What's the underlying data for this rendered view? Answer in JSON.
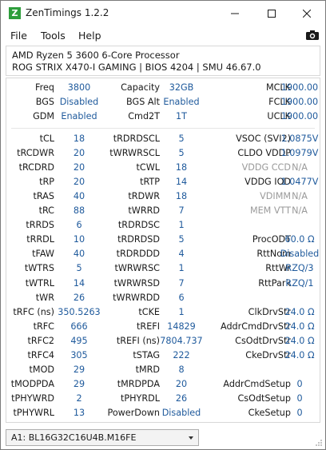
{
  "window": {
    "title": "ZenTimings 1.2.2",
    "icon_letter": "Z"
  },
  "menu": {
    "file": "File",
    "tools": "Tools",
    "help": "Help"
  },
  "system": {
    "cpu": "AMD Ryzen 5 3600 6-Core Processor",
    "board": "ROG STRIX X470-I GAMING | BIOS 4204 | SMU 46.67.0"
  },
  "top": [
    {
      "l1": "Freq",
      "v1": "3800",
      "l2": "Capacity",
      "v2": "32GB",
      "l3": "MCLK",
      "v3": "1900.00"
    },
    {
      "l1": "BGS",
      "v1": "Disabled",
      "l2": "BGS Alt",
      "v2": "Enabled",
      "l3": "FCLK",
      "v3": "1900.00"
    },
    {
      "l1": "GDM",
      "v1": "Enabled",
      "l2": "Cmd2T",
      "v2": "1T",
      "l3": "UCLK",
      "v3": "1900.00"
    }
  ],
  "rows": [
    {
      "l1": "tCL",
      "v1": "18",
      "l2": "tRDRDSCL",
      "v2": "5",
      "l3": "VSOC (SVI2)",
      "v3": "1.0875V"
    },
    {
      "l1": "tRCDWR",
      "v1": "20",
      "l2": "tWRWRSCL",
      "v2": "5",
      "l3": "CLDO VDDP",
      "v3": "1.0979V"
    },
    {
      "l1": "tRCDRD",
      "v1": "20",
      "l2": "tCWL",
      "v2": "18",
      "l3": "VDDG CCD",
      "v3": "N/A",
      "na": true
    },
    {
      "l1": "tRP",
      "v1": "20",
      "l2": "tRTP",
      "v2": "14",
      "l3": "VDDG IOD",
      "v3": "1.0477V"
    },
    {
      "l1": "tRAS",
      "v1": "40",
      "l2": "tRDWR",
      "v2": "18",
      "l3": "VDIMM",
      "v3": "N/A",
      "na": true
    },
    {
      "l1": "tRC",
      "v1": "88",
      "l2": "tWRRD",
      "v2": "7",
      "l3": "MEM VTT",
      "v3": "N/A",
      "na": true
    },
    {
      "l1": "tRRDS",
      "v1": "6",
      "l2": "tRDRDSC",
      "v2": "1",
      "l3": "",
      "v3": ""
    },
    {
      "l1": "tRRDL",
      "v1": "10",
      "l2": "tRDRDSD",
      "v2": "5",
      "l3": "ProcODT",
      "v3": "60.0 Ω"
    },
    {
      "l1": "tFAW",
      "v1": "40",
      "l2": "tRDRDDD",
      "v2": "4",
      "l3": "RttNom",
      "v3": "Disabled"
    },
    {
      "l1": "tWTRS",
      "v1": "5",
      "l2": "tWRWRSC",
      "v2": "1",
      "l3": "RttWr",
      "v3": "RZQ/3"
    },
    {
      "l1": "tWTRL",
      "v1": "14",
      "l2": "tWRWRSD",
      "v2": "7",
      "l3": "RttPark",
      "v3": "RZQ/1"
    },
    {
      "l1": "tWR",
      "v1": "26",
      "l2": "tWRWRDD",
      "v2": "6",
      "l3": "",
      "v3": ""
    },
    {
      "l1": "tRFC (ns)",
      "v1": "350.5263",
      "l2": "tCKE",
      "v2": "1",
      "l3": "ClkDrvStr",
      "v3": "24.0 Ω"
    },
    {
      "l1": "tRFC",
      "v1": "666",
      "l2": "tREFI",
      "v2": "14829",
      "l3": "AddrCmdDrvStr",
      "v3": "24.0 Ω"
    },
    {
      "l1": "tRFC2",
      "v1": "495",
      "l2": "tREFI (ns)",
      "v2": "7804.737",
      "l3": "CsOdtDrvStr",
      "v3": "24.0 Ω"
    },
    {
      "l1": "tRFC4",
      "v1": "305",
      "l2": "tSTAG",
      "v2": "222",
      "l3": "CkeDrvStr",
      "v3": "24.0 Ω"
    },
    {
      "l1": "tMOD",
      "v1": "29",
      "l2": "tMRD",
      "v2": "8",
      "l3": "",
      "v3": ""
    },
    {
      "l1": "tMODPDA",
      "v1": "29",
      "l2": "tMRDPDA",
      "v2": "20",
      "l3": "AddrCmdSetup",
      "v3": "0"
    },
    {
      "l1": "tPHYWRD",
      "v1": "2",
      "l2": "tPHYRDL",
      "v2": "26",
      "l3": "CsOdtSetup",
      "v3": "0"
    },
    {
      "l1": "tPHYWRL",
      "v1": "13",
      "l2": "PowerDown",
      "v2": "Disabled",
      "l3": "CkeSetup",
      "v3": "0"
    }
  ],
  "dimm_selector": {
    "selected": "A1: BL16G32C16U4B.M16FE"
  },
  "colors": {
    "value": "#1f5a9c",
    "na": "#9a9a9a",
    "icon": "#2e9e3c"
  }
}
